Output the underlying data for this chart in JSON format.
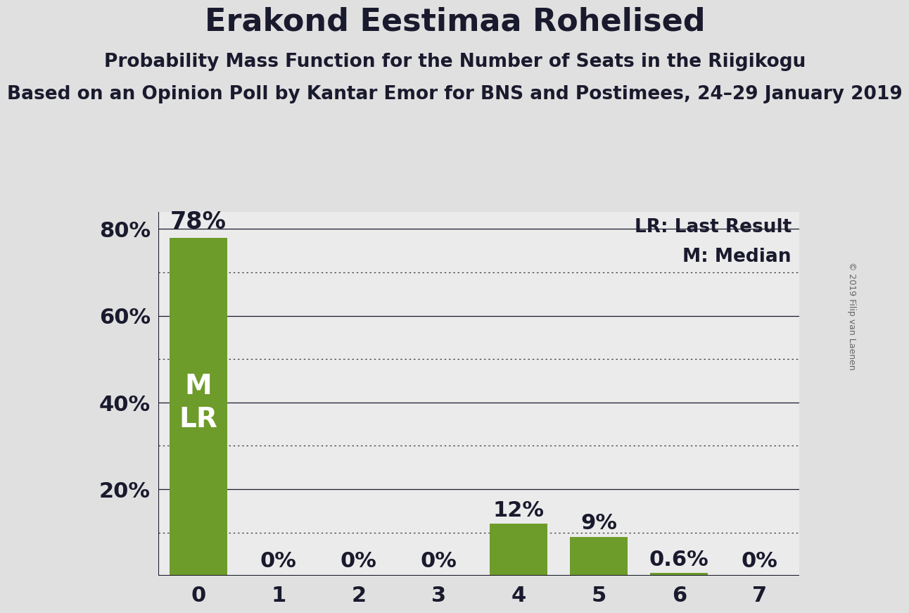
{
  "title": "Erakond Eestimaa Rohelised",
  "subtitle": "Probability Mass Function for the Number of Seats in the Riigikogu",
  "subsubtitle": "Based on an Opinion Poll by Kantar Emor for BNS and Postimees, 24–29 January 2019",
  "copyright": "© 2019 Filip van Laenen",
  "categories": [
    0,
    1,
    2,
    3,
    4,
    5,
    6,
    7
  ],
  "values": [
    0.78,
    0.0,
    0.0,
    0.0,
    0.12,
    0.09,
    0.006,
    0.0
  ],
  "labels": [
    "78%",
    "0%",
    "0%",
    "0%",
    "12%",
    "9%",
    "0.6%",
    "0%"
  ],
  "bar_color": "#6d9c2a",
  "background_color": "#e0e0e0",
  "plot_background_color": "#ebebeb",
  "title_color": "#1a1a2e",
  "label_color": "#1a1a2e",
  "bar_label_color_inside": "#ffffff",
  "bar_label_color_outside": "#1a1a2e",
  "legend_lr": "LR: Last Result",
  "legend_m": "M: Median",
  "ylim": [
    0,
    0.84
  ],
  "yticks": [
    0.0,
    0.1,
    0.2,
    0.3,
    0.4,
    0.5,
    0.6,
    0.7,
    0.8
  ],
  "ytick_labels_show": [
    "20%",
    "40%",
    "60%",
    "80%"
  ],
  "ytick_labels_show_vals": [
    0.2,
    0.4,
    0.6,
    0.8
  ],
  "solid_yticks": [
    0.2,
    0.4,
    0.6,
    0.8
  ],
  "dotted_yticks": [
    0.1,
    0.3,
    0.5,
    0.7
  ],
  "title_fontsize": 32,
  "subtitle_fontsize": 19,
  "subsubtitle_fontsize": 19,
  "axis_tick_fontsize": 22,
  "bar_label_fontsize": 22,
  "bar_label_above_fontsize": 24,
  "bar_label_inside_fontsize": 28,
  "legend_fontsize": 19,
  "copyright_fontsize": 9
}
